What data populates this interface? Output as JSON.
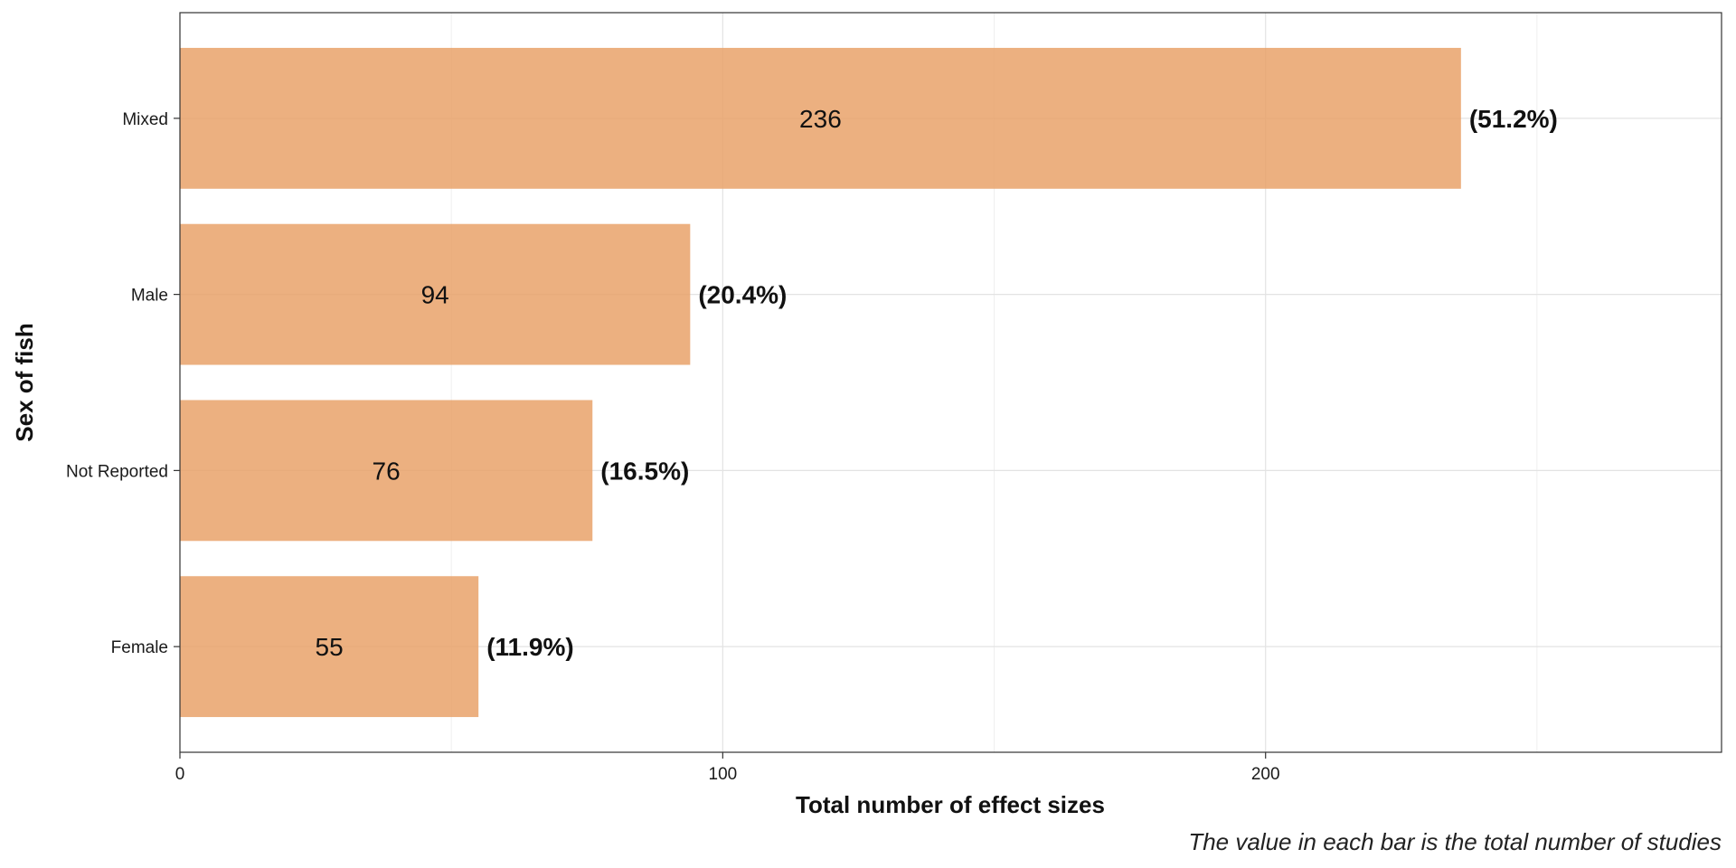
{
  "chart_data": {
    "type": "bar",
    "orientation": "horizontal",
    "categories": [
      "Female",
      "Not Reported",
      "Male",
      "Mixed"
    ],
    "values": [
      55,
      76,
      94,
      236
    ],
    "percent_labels": [
      "(11.9%)",
      "(16.5%)",
      "(20.4%)",
      "(51.2%)"
    ],
    "xlabel": "Total number of effect sizes",
    "ylabel": "Sex of fish",
    "caption": "The value in each bar is the total number of studies",
    "xlim": [
      0,
      284
    ],
    "x_ticks": [
      0,
      100,
      200
    ],
    "grid": true,
    "legend": "none",
    "bar_color": "#E9A26A",
    "bar_opacity": 0.85
  }
}
